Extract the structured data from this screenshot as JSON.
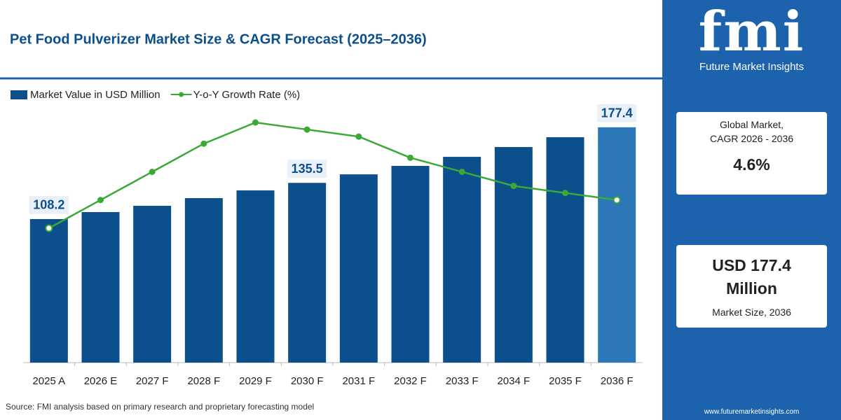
{
  "chart_data": {
    "type": "bar",
    "title": "Pet Food Pulverizer Market Size & CAGR Forecast (2025–2036)",
    "categories": [
      "2025 A",
      "2026 E",
      "2027 F",
      "2028 F",
      "2029 F",
      "2030 F",
      "2031 F",
      "2032 F",
      "2033 F",
      "2034 F",
      "2035 F",
      "2036 F"
    ],
    "series": [
      {
        "name": "Market Value in USD Million",
        "type": "bar",
        "color": "#0b4f8c",
        "colors": [
          "#0b4f8c",
          "#0b4f8c",
          "#0b4f8c",
          "#0b4f8c",
          "#0b4f8c",
          "#0b4f8c",
          "#0b4f8c",
          "#0b4f8c",
          "#0b4f8c",
          "#0b4f8c",
          "#0b4f8c",
          "#2b77b8"
        ],
        "values": [
          108.2,
          113.5,
          118.2,
          124.0,
          129.8,
          135.5,
          141.9,
          148.3,
          155.1,
          162.5,
          169.9,
          177.4
        ],
        "value_labels": [
          "108.2",
          null,
          null,
          null,
          null,
          "135.5",
          null,
          null,
          null,
          null,
          null,
          "177.4"
        ]
      },
      {
        "name": "Y-o-Y Growth Rate (%)",
        "type": "line",
        "color": "#3aa935",
        "values": [
          4.0,
          4.4,
          4.8,
          5.2,
          5.5,
          5.4,
          5.3,
          5.0,
          4.8,
          4.6,
          4.5,
          4.4
        ]
      }
    ],
    "source": "Source: FMI analysis based on primary research and proprietary forecasting model"
  },
  "panel": {
    "logo": "fmi",
    "brand": "Future Market Insights",
    "card1": {
      "title": [
        "Global Market,",
        "CAGR 2026 - 2036"
      ],
      "value": "4.6%"
    },
    "card2": {
      "value": [
        "USD 177.4",
        "Million"
      ],
      "caption": "Market Size, 2036"
    },
    "url": "www.futuremarketinsights.com"
  }
}
